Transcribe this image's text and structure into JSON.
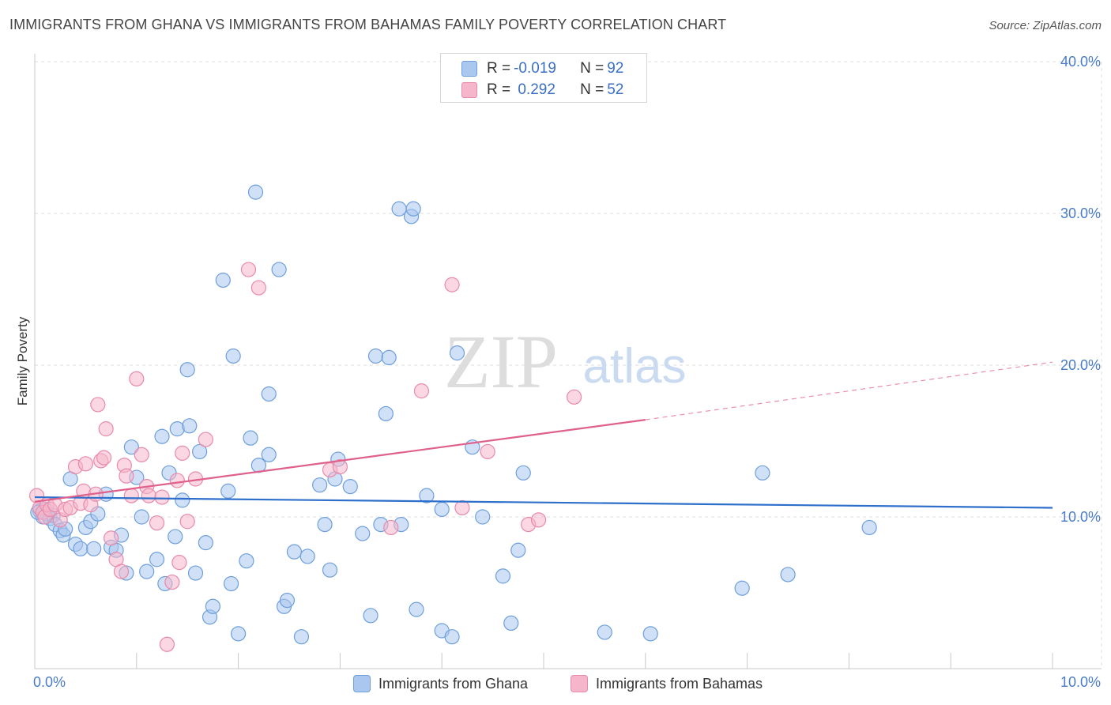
{
  "header": {
    "title": "IMMIGRANTS FROM GHANA VS IMMIGRANTS FROM BAHAMAS FAMILY POVERTY CORRELATION CHART",
    "source": "Source: ZipAtlas.com"
  },
  "watermark": {
    "zip": "ZIP",
    "atlas": "atlas"
  },
  "legend_top": {
    "rows": [
      {
        "r_label": "R = ",
        "r_value": "-0.019",
        "n_label": "N = ",
        "n_value": "92"
      },
      {
        "r_label": "R = ",
        "r_value": " 0.292",
        "n_label": "N = ",
        "n_value": "52"
      }
    ]
  },
  "legend_bottom": {
    "items": [
      "Immigrants from Ghana",
      "Immigrants from Bahamas"
    ]
  },
  "colors": {
    "ghana_fill": "#a9c7ef",
    "ghana_stroke": "#6e9fdc",
    "ghana_line": "#2d6fcb",
    "bahamas_fill": "#f5b6cb",
    "bahamas_stroke": "#e88aaa",
    "bahamas_line": "#e0608c",
    "tick_label": "#4a7cc9",
    "grid": "#dddddd"
  },
  "chart_data": {
    "type": "scatter",
    "title": "IMMIGRANTS FROM GHANA VS IMMIGRANTS FROM BAHAMAS FAMILY POVERTY CORRELATION CHART",
    "xlabel": "",
    "ylabel": "Family Poverty",
    "xlim": [
      0,
      10
    ],
    "ylim": [
      0,
      40
    ],
    "x_tick_labels": [
      "0.0%",
      "10.0%"
    ],
    "y_ticks": [
      10,
      20,
      30,
      40
    ],
    "y_tick_labels": [
      "10.0%",
      "20.0%",
      "30.0%",
      "40.0%"
    ],
    "grid": true,
    "legend": "top-center",
    "series": [
      {
        "name": "Immigrants from Ghana",
        "r": -0.019,
        "n": 92,
        "trend": {
          "x": [
            0,
            10
          ],
          "y": [
            11.3,
            10.6
          ]
        },
        "points": [
          [
            0.05,
            10.4
          ],
          [
            0.08,
            10.0
          ],
          [
            0.1,
            10.5
          ],
          [
            0.12,
            10.2
          ],
          [
            0.15,
            9.9
          ],
          [
            0.18,
            10.1
          ],
          [
            0.2,
            9.5
          ],
          [
            0.25,
            9.1
          ],
          [
            0.28,
            8.8
          ],
          [
            0.3,
            9.2
          ],
          [
            0.35,
            12.5
          ],
          [
            0.4,
            8.2
          ],
          [
            0.45,
            7.9
          ],
          [
            0.5,
            9.3
          ],
          [
            0.55,
            9.7
          ],
          [
            0.58,
            7.9
          ],
          [
            0.62,
            10.2
          ],
          [
            0.7,
            11.5
          ],
          [
            0.75,
            8.0
          ],
          [
            0.8,
            7.8
          ],
          [
            0.85,
            8.8
          ],
          [
            0.9,
            6.3
          ],
          [
            0.95,
            14.6
          ],
          [
            1.0,
            12.6
          ],
          [
            1.05,
            10.0
          ],
          [
            1.1,
            6.4
          ],
          [
            1.2,
            7.2
          ],
          [
            1.25,
            15.3
          ],
          [
            1.28,
            5.6
          ],
          [
            1.32,
            12.9
          ],
          [
            1.38,
            8.7
          ],
          [
            1.4,
            15.8
          ],
          [
            1.45,
            11.1
          ],
          [
            1.5,
            19.7
          ],
          [
            1.52,
            16.0
          ],
          [
            1.58,
            6.3
          ],
          [
            1.62,
            14.3
          ],
          [
            1.68,
            8.3
          ],
          [
            1.72,
            3.4
          ],
          [
            1.75,
            4.1
          ],
          [
            1.85,
            25.6
          ],
          [
            1.9,
            11.7
          ],
          [
            1.93,
            5.6
          ],
          [
            1.95,
            20.6
          ],
          [
            2.0,
            2.3
          ],
          [
            2.08,
            7.1
          ],
          [
            2.12,
            15.2
          ],
          [
            2.17,
            31.4
          ],
          [
            2.2,
            13.4
          ],
          [
            2.3,
            14.1
          ],
          [
            2.3,
            18.1
          ],
          [
            2.4,
            26.3
          ],
          [
            2.45,
            4.1
          ],
          [
            2.48,
            4.5
          ],
          [
            2.55,
            7.7
          ],
          [
            2.62,
            2.1
          ],
          [
            2.68,
            7.4
          ],
          [
            2.8,
            12.1
          ],
          [
            2.85,
            9.5
          ],
          [
            2.9,
            6.5
          ],
          [
            2.95,
            12.5
          ],
          [
            2.98,
            13.8
          ],
          [
            3.1,
            12.0
          ],
          [
            3.22,
            8.9
          ],
          [
            3.3,
            3.5
          ],
          [
            3.35,
            20.6
          ],
          [
            3.4,
            9.5
          ],
          [
            3.45,
            16.8
          ],
          [
            3.48,
            20.5
          ],
          [
            3.58,
            30.3
          ],
          [
            3.6,
            9.5
          ],
          [
            3.7,
            29.8
          ],
          [
            3.72,
            30.3
          ],
          [
            3.75,
            3.9
          ],
          [
            3.85,
            11.4
          ],
          [
            4.0,
            10.5
          ],
          [
            4.0,
            2.5
          ],
          [
            4.1,
            2.1
          ],
          [
            4.15,
            20.8
          ],
          [
            4.3,
            14.6
          ],
          [
            4.4,
            10.0
          ],
          [
            4.6,
            6.1
          ],
          [
            4.68,
            3.0
          ],
          [
            4.75,
            7.8
          ],
          [
            4.8,
            12.9
          ],
          [
            5.6,
            2.4
          ],
          [
            6.05,
            2.3
          ],
          [
            6.95,
            5.3
          ],
          [
            7.15,
            12.9
          ],
          [
            7.4,
            6.2
          ],
          [
            8.2,
            9.3
          ],
          [
            0.03,
            10.3
          ]
        ]
      },
      {
        "name": "Immigrants from Bahamas",
        "r": 0.292,
        "n": 52,
        "trend": {
          "x": [
            0,
            6.0
          ],
          "y": [
            11.0,
            16.4
          ]
        },
        "trend_dashed": {
          "x": [
            6.0,
            10
          ],
          "y": [
            16.4,
            20.2
          ]
        },
        "points": [
          [
            0.02,
            11.4
          ],
          [
            0.05,
            10.6
          ],
          [
            0.08,
            10.3
          ],
          [
            0.1,
            10.0
          ],
          [
            0.12,
            10.8
          ],
          [
            0.15,
            10.5
          ],
          [
            0.2,
            10.8
          ],
          [
            0.25,
            9.8
          ],
          [
            0.3,
            10.5
          ],
          [
            0.35,
            10.6
          ],
          [
            0.4,
            13.3
          ],
          [
            0.45,
            10.9
          ],
          [
            0.48,
            11.7
          ],
          [
            0.5,
            13.5
          ],
          [
            0.55,
            10.8
          ],
          [
            0.6,
            11.5
          ],
          [
            0.62,
            17.4
          ],
          [
            0.65,
            13.7
          ],
          [
            0.68,
            13.9
          ],
          [
            0.7,
            15.8
          ],
          [
            0.75,
            8.6
          ],
          [
            0.8,
            7.2
          ],
          [
            0.85,
            6.4
          ],
          [
            0.88,
            13.4
          ],
          [
            0.9,
            12.7
          ],
          [
            0.95,
            11.4
          ],
          [
            1.0,
            19.1
          ],
          [
            1.05,
            14.1
          ],
          [
            1.1,
            12.0
          ],
          [
            1.12,
            11.4
          ],
          [
            1.2,
            9.6
          ],
          [
            1.25,
            11.3
          ],
          [
            1.3,
            1.6
          ],
          [
            1.35,
            5.7
          ],
          [
            1.4,
            12.4
          ],
          [
            1.42,
            7.0
          ],
          [
            1.45,
            14.2
          ],
          [
            1.5,
            9.7
          ],
          [
            1.58,
            12.5
          ],
          [
            1.68,
            15.1
          ],
          [
            2.1,
            26.3
          ],
          [
            2.2,
            25.1
          ],
          [
            2.9,
            13.1
          ],
          [
            3.0,
            13.3
          ],
          [
            3.5,
            9.3
          ],
          [
            3.8,
            18.3
          ],
          [
            4.1,
            25.3
          ],
          [
            4.2,
            10.6
          ],
          [
            4.45,
            14.3
          ],
          [
            4.85,
            9.5
          ],
          [
            4.95,
            9.8
          ],
          [
            5.3,
            17.9
          ]
        ]
      }
    ]
  }
}
